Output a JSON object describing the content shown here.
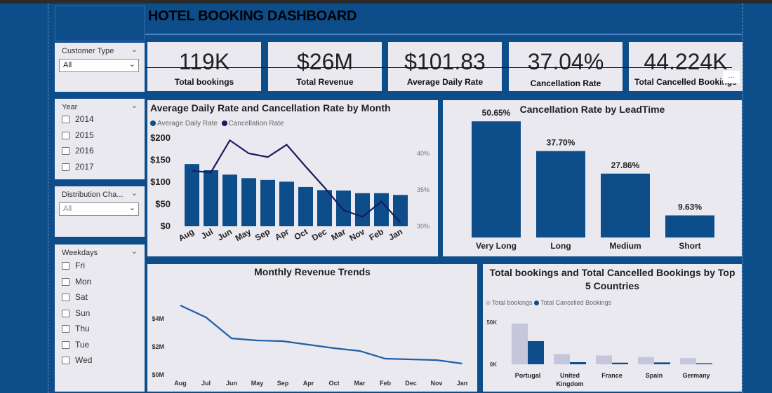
{
  "dashboard": {
    "title": "HOTEL BOOKING DASHBOARD"
  },
  "filters": {
    "customer_type": {
      "label": "Customer Type",
      "value": "All"
    },
    "year": {
      "label": "Year",
      "options": [
        "2014",
        "2015",
        "2016",
        "2017"
      ]
    },
    "distribution": {
      "label": "Distribution Cha...",
      "value": "All"
    },
    "weekdays": {
      "label": "Weekdays",
      "options": [
        "Fri",
        "Mon",
        "Sat",
        "Sun",
        "Thu",
        "Tue",
        "Wed"
      ]
    }
  },
  "kpis": [
    {
      "value": "119K",
      "label": "Total bookings"
    },
    {
      "value": "$26M",
      "label": "Total Revenue"
    },
    {
      "value": "$101.83",
      "label": "Average Daily Rate"
    },
    {
      "value": "37.04%",
      "label": "Cancellation Rate"
    },
    {
      "value": "44.224K",
      "label": "Total Cancelled Bookings"
    }
  ],
  "more_options": "...",
  "chart_data": [
    {
      "type": "bar",
      "title": "Average Daily Rate and Cancellation Rate by Month",
      "categories": [
        "Aug",
        "Jul",
        "Jun",
        "May",
        "Sep",
        "Apr",
        "Oct",
        "Dec",
        "Mar",
        "Nov",
        "Feb",
        "Jan"
      ],
      "series": [
        {
          "name": "Average Daily Rate",
          "type": "bar",
          "axis": "left",
          "color": "#0d4d8a",
          "values": [
            141,
            127,
            117,
            109,
            105,
            101,
            89,
            82,
            81,
            75,
            75,
            71
          ]
        },
        {
          "name": "Cancellation Rate",
          "type": "line",
          "axis": "right",
          "color": "#1a1a5e",
          "values": [
            37.6,
            37.4,
            41.8,
            40.0,
            39.5,
            41.2,
            38.2,
            35.3,
            32.2,
            31.3,
            33.4,
            30.5
          ]
        }
      ],
      "ylabels_left": [
        "$200",
        "$150",
        "$100",
        "$50",
        "$0"
      ],
      "ylim_left": [
        0,
        200
      ],
      "ylabels_right": [
        "40%",
        "35%",
        "30%"
      ],
      "ylim_right": [
        30,
        40
      ],
      "legend": "top-left"
    },
    {
      "type": "bar",
      "title": "Cancellation Rate by LeadTime",
      "categories": [
        "Very Long",
        "Long",
        "Medium",
        "Short"
      ],
      "values": [
        50.65,
        37.7,
        27.86,
        9.63
      ],
      "data_labels": [
        "50.65%",
        "37.70%",
        "27.86%",
        "9.63%"
      ],
      "ylim": [
        0,
        55
      ],
      "color": "#0d4d8a"
    },
    {
      "type": "line",
      "title": "Monthly Revenue Trends",
      "categories": [
        "Aug",
        "Jul",
        "Jun",
        "May",
        "Sep",
        "Apr",
        "Oct",
        "Mar",
        "Feb",
        "Dec",
        "Nov",
        "Jan"
      ],
      "values": [
        4.95,
        4.1,
        2.6,
        2.45,
        2.4,
        2.15,
        1.9,
        1.7,
        1.15,
        1.1,
        1.05,
        0.8
      ],
      "ylabels": [
        "$4M",
        "$2M",
        "$0M"
      ],
      "ylim": [
        0,
        5.8
      ],
      "color": "#1f5fa8"
    },
    {
      "type": "bar",
      "title": "Total bookings and Total Cancelled Bookings by Top 5 Countries",
      "categories": [
        "Portugal",
        "United Kingdom",
        "France",
        "Spain",
        "Germany"
      ],
      "series": [
        {
          "name": "Total bookings",
          "color": "#c5c5dc",
          "values": [
            48500,
            12100,
            10400,
            8600,
            7300
          ]
        },
        {
          "name": "Total Cancelled Bookings",
          "color": "#0d4d8a",
          "values": [
            27500,
            2500,
            1900,
            2200,
            1200
          ]
        }
      ],
      "ylabels": [
        "50K",
        "0K"
      ],
      "ylim": [
        0,
        50000
      ],
      "legend": "top-left"
    }
  ]
}
